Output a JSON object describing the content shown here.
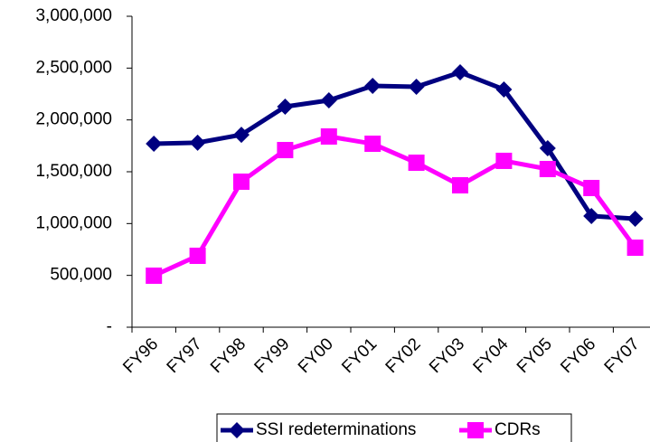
{
  "chart_data": {
    "type": "line",
    "categories": [
      "FY96",
      "FY97",
      "FY98",
      "FY99",
      "FY00",
      "FY01",
      "FY02",
      "FY03",
      "FY04",
      "FY05",
      "FY06",
      "FY07"
    ],
    "series": [
      {
        "name": "SSI redeterminations",
        "color": "#000080",
        "marker": "diamond",
        "values": [
          1770000,
          1780000,
          1857000,
          2128000,
          2189000,
          2328000,
          2320000,
          2459000,
          2294000,
          1727000,
          1073000,
          1047000
        ]
      },
      {
        "name": "CDRs",
        "color": "#ff00ff",
        "marker": "square",
        "values": [
          497000,
          689000,
          1404000,
          1709000,
          1840000,
          1770000,
          1587000,
          1369000,
          1605000,
          1526000,
          1343000,
          767000
        ]
      }
    ],
    "ylim": [
      0,
      3000000
    ],
    "yticks": [
      {
        "value": 0,
        "label": "-"
      },
      {
        "value": 500000,
        "label": "500,000"
      },
      {
        "value": 1000000,
        "label": "1,000,000"
      },
      {
        "value": 1500000,
        "label": "1,500,000"
      },
      {
        "value": 2000000,
        "label": "2,000,000"
      },
      {
        "value": 2500000,
        "label": "2,500,000"
      },
      {
        "value": 3000000,
        "label": "3,000,000"
      }
    ],
    "legend": "bottom",
    "grid": false
  }
}
